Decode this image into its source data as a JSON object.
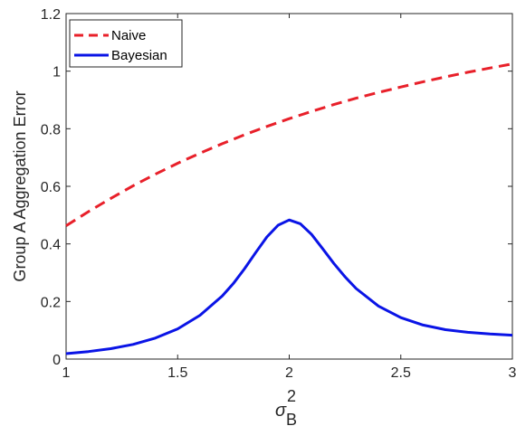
{
  "chart_data": {
    "type": "line",
    "xlabel": "σ",
    "xlabel_superscript": "2",
    "xlabel_subscript": "B",
    "ylabel": "Group A Aggregation Error",
    "xlim": [
      1,
      3
    ],
    "ylim": [
      0,
      1.2
    ],
    "xticks": [
      1,
      1.5,
      2,
      2.5,
      3
    ],
    "xtick_labels": [
      "1",
      "1.5",
      "2",
      "2.5",
      "3"
    ],
    "yticks": [
      0,
      0.2,
      0.4,
      0.6,
      0.8,
      1.0,
      1.2
    ],
    "ytick_labels": [
      "0",
      "0.2",
      "0.4",
      "0.6",
      "0.8",
      "1",
      "1.2"
    ],
    "grid": false,
    "legend_position": "top-left",
    "series": [
      {
        "name": "Naive",
        "color": "#e8202a",
        "style": "dashed",
        "x": [
          1.0,
          1.1,
          1.2,
          1.3,
          1.4,
          1.5,
          1.6,
          1.7,
          1.8,
          1.9,
          2.0,
          2.1,
          2.2,
          2.3,
          2.4,
          2.5,
          2.6,
          2.7,
          2.8,
          2.9,
          3.0
        ],
        "y": [
          0.463,
          0.512,
          0.558,
          0.602,
          0.642,
          0.68,
          0.715,
          0.748,
          0.779,
          0.808,
          0.835,
          0.86,
          0.884,
          0.906,
          0.926,
          0.945,
          0.963,
          0.98,
          0.996,
          1.011,
          1.025
        ]
      },
      {
        "name": "Bayesian",
        "color": "#0a14e6",
        "style": "solid",
        "x": [
          1.0,
          1.1,
          1.2,
          1.3,
          1.4,
          1.5,
          1.6,
          1.7,
          1.75,
          1.8,
          1.85,
          1.9,
          1.95,
          2.0,
          2.05,
          2.1,
          2.15,
          2.2,
          2.25,
          2.3,
          2.4,
          2.5,
          2.6,
          2.7,
          2.8,
          2.9,
          3.0
        ],
        "y": [
          0.019,
          0.026,
          0.036,
          0.051,
          0.073,
          0.105,
          0.152,
          0.219,
          0.263,
          0.314,
          0.37,
          0.424,
          0.465,
          0.483,
          0.47,
          0.433,
          0.383,
          0.332,
          0.286,
          0.245,
          0.184,
          0.144,
          0.118,
          0.102,
          0.093,
          0.087,
          0.083
        ]
      }
    ]
  }
}
